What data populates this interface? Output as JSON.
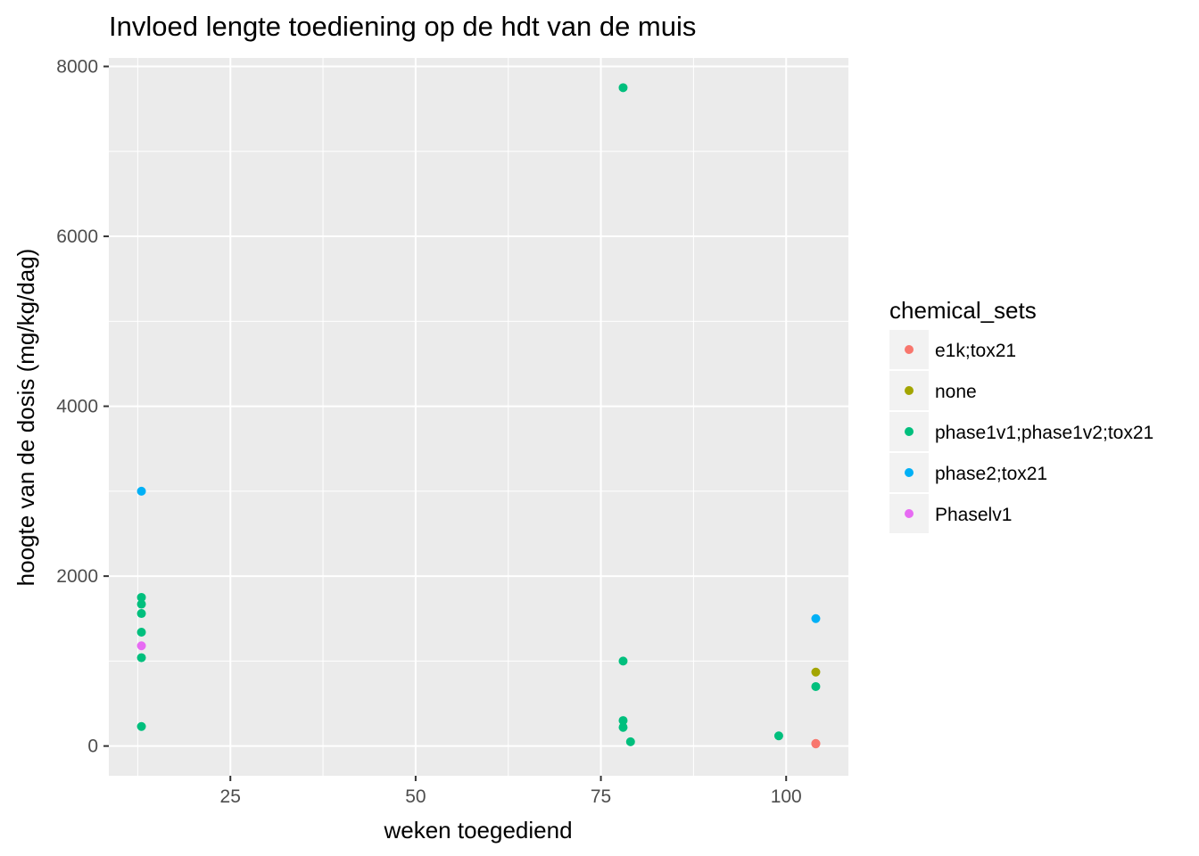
{
  "chart_data": {
    "type": "scatter",
    "title": "Invloed lengte toediening op de hdt van de muis",
    "xlabel": "weken toegediend",
    "ylabel": "hoogte van de dosis (mg/kg/dag)",
    "xlim": [
      8.6,
      108.4
    ],
    "ylim": [
      -350,
      8100
    ],
    "x_ticks": [
      25,
      50,
      75,
      100
    ],
    "x_tick_labels": [
      "25",
      "50",
      "75",
      "100"
    ],
    "y_ticks": [
      0,
      2000,
      4000,
      6000,
      8000
    ],
    "y_tick_labels": [
      "0",
      "2000",
      "4000",
      "6000",
      "8000"
    ],
    "grid": true,
    "legend": {
      "title": "chemical_sets",
      "position": "right"
    },
    "series": [
      {
        "name": "e1k;tox21",
        "color": "#F8766D",
        "points": [
          [
            104,
            30
          ],
          [
            104,
            25
          ]
        ]
      },
      {
        "name": "none",
        "color": "#A3A500",
        "points": [
          [
            104,
            870
          ]
        ]
      },
      {
        "name": "phase1v1;phase1v2;tox21",
        "color": "#00BF7D",
        "points": [
          [
            13,
            1750
          ],
          [
            13,
            1670
          ],
          [
            13,
            1560
          ],
          [
            13,
            1340
          ],
          [
            13,
            1040
          ],
          [
            13,
            230
          ],
          [
            78,
            7750
          ],
          [
            78,
            1000
          ],
          [
            78,
            300
          ],
          [
            78,
            220
          ],
          [
            79,
            50
          ],
          [
            99,
            120
          ],
          [
            104,
            700
          ]
        ]
      },
      {
        "name": "phase2;tox21",
        "color": "#00B0F6",
        "points": [
          [
            13,
            3000
          ],
          [
            104,
            1500
          ]
        ]
      },
      {
        "name": "Phaselv1",
        "color": "#E76BF3",
        "points": [
          [
            13,
            1180
          ]
        ]
      }
    ]
  }
}
